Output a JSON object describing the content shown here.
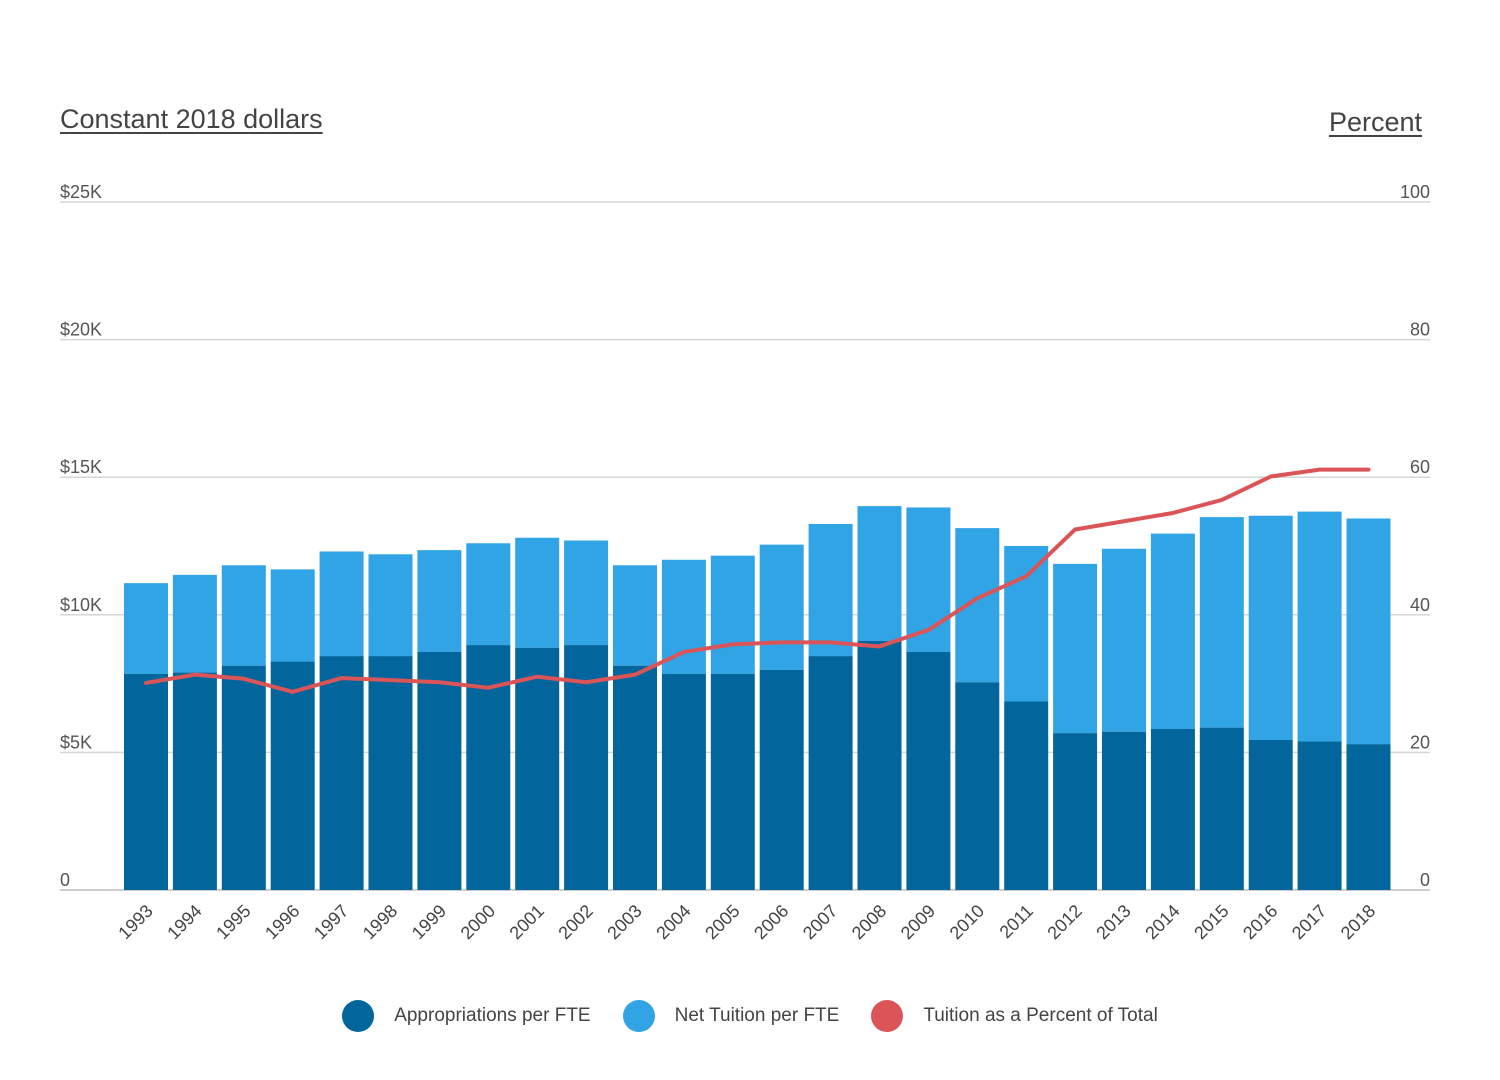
{
  "axes": {
    "left_title": "Constant 2018 dollars",
    "right_title": "Percent",
    "left_ticks": [
      "0",
      "$5K",
      "$10K",
      "$15K",
      "$20K",
      "$25K"
    ],
    "right_ticks": [
      "0",
      "20",
      "40",
      "60",
      "80",
      "100"
    ]
  },
  "colors": {
    "appropriations": "#02669D",
    "tuition": "#31A4E5",
    "percent": "#DB5458",
    "grid": "#D6D6D6"
  },
  "legend": [
    {
      "label": "Appropriations per FTE",
      "color": "#02669D"
    },
    {
      "label": "Net Tuition per FTE",
      "color": "#31A4E5"
    },
    {
      "label": "Tuition as a Percent of Total",
      "color": "#DB5458"
    }
  ],
  "chart_data": {
    "type": "bar",
    "stacked": true,
    "categories": [
      "1993",
      "1994",
      "1995",
      "1996",
      "1997",
      "1998",
      "1999",
      "2000",
      "2001",
      "2002",
      "2003",
      "2004",
      "2005",
      "2006",
      "2007",
      "2008",
      "2009",
      "2010",
      "2011",
      "2012",
      "2013",
      "2014",
      "2015",
      "2016",
      "2017",
      "2018"
    ],
    "series": [
      {
        "name": "Appropriations per FTE",
        "axis": "left",
        "values": [
          7850,
          7900,
          8150,
          8300,
          8500,
          8500,
          8650,
          8900,
          8800,
          8900,
          8150,
          7850,
          7850,
          8000,
          8500,
          9050,
          8650,
          7550,
          6850,
          5700,
          5750,
          5850,
          5900,
          5450,
          5400,
          5300
        ]
      },
      {
        "name": "Net Tuition per FTE",
        "axis": "left",
        "values": [
          3300,
          3550,
          3650,
          3350,
          3800,
          3700,
          3700,
          3700,
          4000,
          3800,
          3650,
          4150,
          4300,
          4550,
          4800,
          4900,
          5250,
          5600,
          5650,
          6150,
          6650,
          7100,
          7650,
          8150,
          8350,
          8200
        ]
      },
      {
        "name": "Tuition as a Percent of Total",
        "axis": "right",
        "type": "line",
        "values": [
          30.1,
          31.3,
          30.7,
          28.8,
          30.8,
          30.5,
          30.2,
          29.4,
          31.0,
          30.2,
          31.3,
          34.6,
          35.7,
          36.0,
          36.0,
          35.4,
          37.8,
          42.4,
          45.6,
          52.4,
          53.6,
          54.8,
          56.7,
          60.1,
          61.1,
          61.1
        ]
      }
    ],
    "ylim": [
      0,
      25000
    ],
    "y2lim": [
      0,
      100
    ],
    "ylabel": "Constant 2018 dollars",
    "y2label": "Percent",
    "grid": true,
    "legend_position": "bottom"
  }
}
